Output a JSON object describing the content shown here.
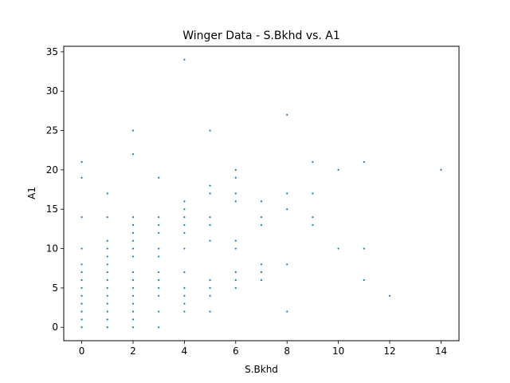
{
  "chart_data": {
    "type": "scatter",
    "title": "Winger Data - S.Bkhd vs. A1",
    "xlabel": "S.Bkhd",
    "ylabel": "A1",
    "xlim": [
      -0.7,
      14.7
    ],
    "ylim": [
      -1.7,
      35.7
    ],
    "xticks": [
      0,
      2,
      4,
      6,
      8,
      10,
      12,
      14
    ],
    "yticks": [
      0,
      5,
      10,
      15,
      20,
      25,
      30,
      35
    ],
    "grid": false,
    "marker_color": "#1f77b4",
    "points": [
      [
        0,
        0
      ],
      [
        0,
        1
      ],
      [
        0,
        2
      ],
      [
        0,
        3
      ],
      [
        0,
        4
      ],
      [
        0,
        5
      ],
      [
        0,
        6
      ],
      [
        0,
        7
      ],
      [
        0,
        8
      ],
      [
        0,
        10
      ],
      [
        0,
        14
      ],
      [
        0,
        19
      ],
      [
        0,
        21
      ],
      [
        1,
        0
      ],
      [
        1,
        1
      ],
      [
        1,
        2
      ],
      [
        1,
        3
      ],
      [
        1,
        4
      ],
      [
        1,
        5
      ],
      [
        1,
        6
      ],
      [
        1,
        7
      ],
      [
        1,
        8
      ],
      [
        1,
        9
      ],
      [
        1,
        10
      ],
      [
        1,
        11
      ],
      [
        1,
        14
      ],
      [
        1,
        17
      ],
      [
        2,
        0
      ],
      [
        2,
        1
      ],
      [
        2,
        2
      ],
      [
        2,
        3
      ],
      [
        2,
        4
      ],
      [
        2,
        5
      ],
      [
        2,
        6
      ],
      [
        2,
        7
      ],
      [
        2,
        9
      ],
      [
        2,
        10
      ],
      [
        2,
        11
      ],
      [
        2,
        12
      ],
      [
        2,
        13
      ],
      [
        2,
        14
      ],
      [
        2,
        22
      ],
      [
        2,
        25
      ],
      [
        3,
        0
      ],
      [
        3,
        2
      ],
      [
        3,
        4
      ],
      [
        3,
        5
      ],
      [
        3,
        6
      ],
      [
        3,
        7
      ],
      [
        3,
        9
      ],
      [
        3,
        10
      ],
      [
        3,
        12
      ],
      [
        3,
        13
      ],
      [
        3,
        14
      ],
      [
        3,
        19
      ],
      [
        4,
        2
      ],
      [
        4,
        3
      ],
      [
        4,
        4
      ],
      [
        4,
        5
      ],
      [
        4,
        7
      ],
      [
        4,
        10
      ],
      [
        4,
        12
      ],
      [
        4,
        13
      ],
      [
        4,
        14
      ],
      [
        4,
        15
      ],
      [
        4,
        16
      ],
      [
        4,
        34
      ],
      [
        5,
        2
      ],
      [
        5,
        4
      ],
      [
        5,
        5
      ],
      [
        5,
        6
      ],
      [
        5,
        11
      ],
      [
        5,
        13
      ],
      [
        5,
        14
      ],
      [
        5,
        17
      ],
      [
        5,
        18
      ],
      [
        5,
        25
      ],
      [
        6,
        5
      ],
      [
        6,
        6
      ],
      [
        6,
        7
      ],
      [
        6,
        10
      ],
      [
        6,
        11
      ],
      [
        6,
        16
      ],
      [
        6,
        17
      ],
      [
        6,
        19
      ],
      [
        6,
        20
      ],
      [
        7,
        6
      ],
      [
        7,
        7
      ],
      [
        7,
        8
      ],
      [
        7,
        13
      ],
      [
        7,
        14
      ],
      [
        7,
        16
      ],
      [
        8,
        2
      ],
      [
        8,
        8
      ],
      [
        8,
        15
      ],
      [
        8,
        17
      ],
      [
        8,
        27
      ],
      [
        9,
        13
      ],
      [
        9,
        14
      ],
      [
        9,
        17
      ],
      [
        9,
        21
      ],
      [
        10,
        10
      ],
      [
        10,
        20
      ],
      [
        11,
        6
      ],
      [
        11,
        10
      ],
      [
        11,
        21
      ],
      [
        12,
        4
      ],
      [
        14,
        20
      ]
    ]
  }
}
